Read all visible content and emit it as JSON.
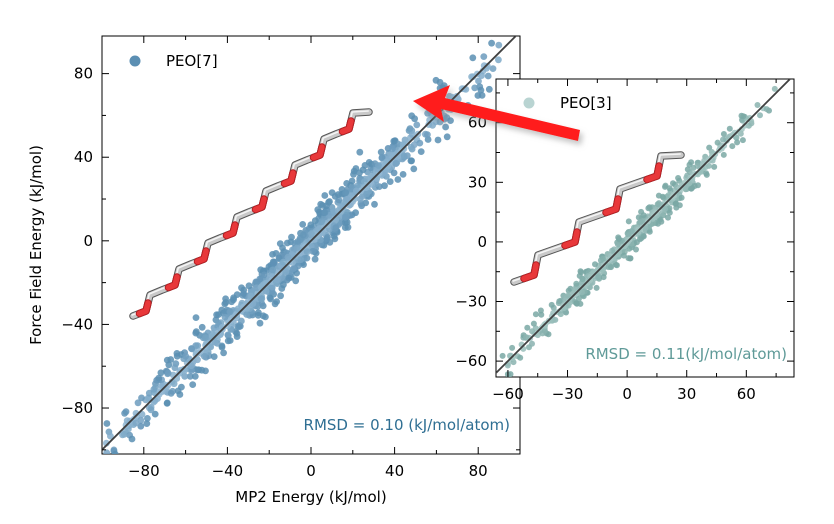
{
  "chart_data": [
    {
      "type": "scatter",
      "xlabel": "MP2 Energy (kJ/mol)",
      "ylabel": "Force Field Energy (kJ/mol)",
      "xlim": [
        -100,
        100
      ],
      "ylim": [
        -102,
        98
      ],
      "xticks": [
        -80,
        -40,
        0,
        40,
        80
      ],
      "yticks": [
        -80,
        -40,
        0,
        40,
        80
      ],
      "x_tick_labels": [
        "−80",
        "−40",
        "0",
        "40",
        "80"
      ],
      "y_tick_labels": [
        "−80",
        "−40",
        "0",
        "40",
        "80"
      ],
      "legend": {
        "label": "PEO[7]",
        "placement": "top-left"
      },
      "annotation": "RMSD = 0.10 (kJ/mol/atom)",
      "reference_line": "y = x",
      "series": [
        {
          "name": "PEO[7]",
          "color": "#5b8fb3",
          "x_range": [
            -98,
            90
          ],
          "spread": 5.5
        }
      ],
      "grid": false
    },
    {
      "type": "scatter",
      "inset": true,
      "xlim": [
        -66,
        84
      ],
      "ylim": [
        -68,
        82
      ],
      "xticks": [
        -60,
        -30,
        0,
        30,
        60
      ],
      "yticks": [
        -60,
        -30,
        0,
        30,
        60
      ],
      "x_tick_labels": [
        "−60",
        "−30",
        "0",
        "30",
        "60"
      ],
      "y_tick_labels": [
        "−60",
        "−30",
        "0",
        "30",
        "60"
      ],
      "legend": {
        "label": "PEO[3]",
        "placement": "top-left"
      },
      "annotation": "RMSD = 0.11(kJ/mol/atom)",
      "reference_line": "y = x",
      "series": [
        {
          "name": "PEO[3]",
          "color": "#7aa8a4",
          "x_range": [
            -63,
            76
          ],
          "spread": 3.5
        }
      ],
      "grid": false
    }
  ],
  "colors": {
    "peo7": "#5b8fb3",
    "peo7_light": "#a8c8e0",
    "peo3": "#7aa8a4",
    "peo3_light": "#b9d4d2",
    "rmsd7": "#2f6f93",
    "rmsd3": "#5f9a98",
    "arrow": "#ff1a1a",
    "oxygen": "#e8383a",
    "carbon": "#c9c9c9"
  },
  "icons": {
    "molecule7": "peo7-molecule-icon",
    "molecule3": "peo3-molecule-icon",
    "arrow": "pointer-arrow-icon"
  }
}
